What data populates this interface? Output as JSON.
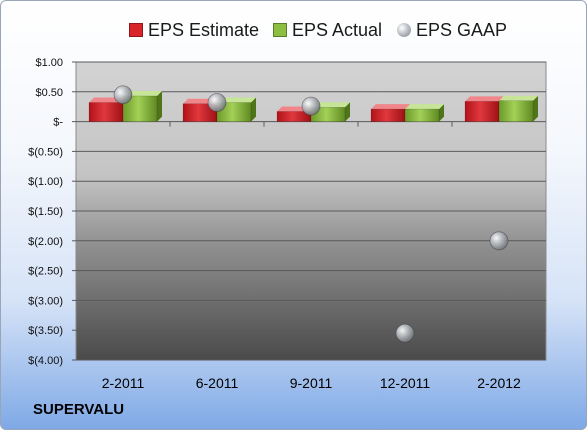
{
  "company": "SUPERVALU",
  "chart_data": {
    "type": "bar",
    "categories": [
      "2-2011",
      "6-2011",
      "9-2011",
      "12-2011",
      "2-2012"
    ],
    "series": [
      {
        "name": "EPS Estimate",
        "kind": "bar",
        "color": "#d9242a",
        "values": [
          0.32,
          0.3,
          0.17,
          0.21,
          0.34
        ]
      },
      {
        "name": "EPS Actual",
        "kind": "bar",
        "color": "#8cbf3f",
        "values": [
          0.43,
          0.32,
          0.24,
          0.21,
          0.35
        ]
      },
      {
        "name": "EPS GAAP",
        "kind": "marker",
        "color": "#a9adb3",
        "values": [
          0.45,
          0.32,
          0.26,
          -3.55,
          -2.0
        ]
      }
    ],
    "yticks": [
      {
        "value": 1.0,
        "label": "$1.00"
      },
      {
        "value": 0.5,
        "label": "$0.50"
      },
      {
        "value": 0.0,
        "label": "$-"
      },
      {
        "value": -0.5,
        "label": "$(0.50)"
      },
      {
        "value": -1.0,
        "label": "$(1.00)"
      },
      {
        "value": -1.5,
        "label": "$(1.50)"
      },
      {
        "value": -2.0,
        "label": "$(2.00)"
      },
      {
        "value": -2.5,
        "label": "$(2.50)"
      },
      {
        "value": -3.0,
        "label": "$(3.00)"
      },
      {
        "value": -3.5,
        "label": "$(3.50)"
      },
      {
        "value": -4.0,
        "label": "$(4.00)"
      }
    ],
    "ylim": [
      -4.0,
      1.0
    ],
    "grid": true,
    "legend_position": "top"
  }
}
